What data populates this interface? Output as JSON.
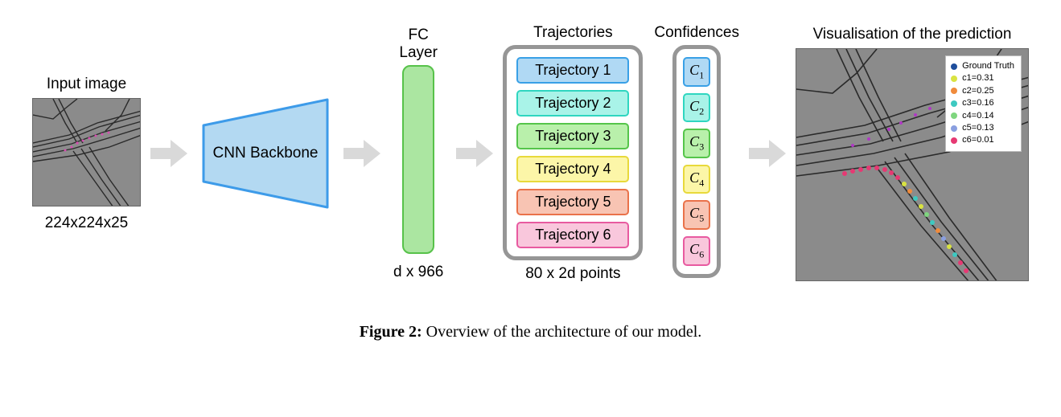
{
  "input": {
    "label": "Input image",
    "dim": "224x224x25"
  },
  "cnn": {
    "label": "CNN Backbone",
    "fill": "#b3d9f2",
    "stroke": "#3d9be9"
  },
  "fc": {
    "label": "FC Layer",
    "dim": "d x 966"
  },
  "arrow_color": "#d9d9d9",
  "trajectories": {
    "label": "Trajectories",
    "sub": "80 x 2d points",
    "items": [
      {
        "text": "Trajectory 1",
        "fill": "#b0d9f4",
        "stroke": "#39a0e6"
      },
      {
        "text": "Trajectory 2",
        "fill": "#a9f3e8",
        "stroke": "#2fd6c0"
      },
      {
        "text": "Trajectory 3",
        "fill": "#b9f0ab",
        "stroke": "#55c54a"
      },
      {
        "text": "Trajectory 4",
        "fill": "#fcf6a8",
        "stroke": "#e8d93b"
      },
      {
        "text": "Trajectory 5",
        "fill": "#f8c4b3",
        "stroke": "#ea724a"
      },
      {
        "text": "Trajectory 6",
        "fill": "#f9c7dc",
        "stroke": "#e85aa0"
      }
    ]
  },
  "confidences": {
    "label": "Confidences",
    "items": [
      {
        "text": "C",
        "sub": "1",
        "fill": "#b0d9f4",
        "stroke": "#39a0e6"
      },
      {
        "text": "C",
        "sub": "2",
        "fill": "#a9f3e8",
        "stroke": "#2fd6c0"
      },
      {
        "text": "C",
        "sub": "3",
        "fill": "#b9f0ab",
        "stroke": "#55c54a"
      },
      {
        "text": "C",
        "sub": "4",
        "fill": "#fcf6a8",
        "stroke": "#e8d93b"
      },
      {
        "text": "C",
        "sub": "5",
        "fill": "#f8c4b3",
        "stroke": "#ea724a"
      },
      {
        "text": "C",
        "sub": "6",
        "fill": "#f9c7dc",
        "stroke": "#e85aa0"
      }
    ]
  },
  "visualisation": {
    "label": "Visualisation of the prediction",
    "legend": [
      {
        "label": "Ground Truth",
        "color": "#1f4e9c"
      },
      {
        "label": "c1=0.31",
        "color": "#d9e341"
      },
      {
        "label": "c2=0.25",
        "color": "#f08b3c"
      },
      {
        "label": "c3=0.16",
        "color": "#3ec9c1"
      },
      {
        "label": "c4=0.14",
        "color": "#7fd67f"
      },
      {
        "label": "c5=0.13",
        "color": "#8a9fe0"
      },
      {
        "label": "c6=0.01",
        "color": "#e63973"
      }
    ]
  },
  "caption": {
    "bold": "Figure 2:",
    "text": " Overview of the architecture of our model."
  },
  "map_bg": "#8b8b8b",
  "map_line": "#2a2a2a"
}
